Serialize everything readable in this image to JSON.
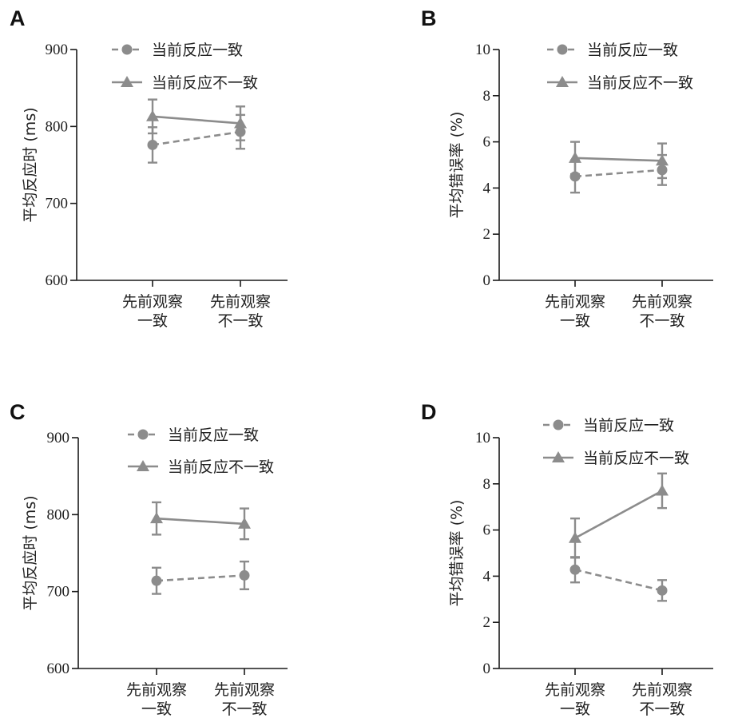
{
  "colors": {
    "series": "#8c8c8c",
    "axis": "#1a1a1a"
  },
  "chart_data": [
    {
      "panel": "A",
      "type": "line",
      "ylabel": "平均反应时 (ms)",
      "categories": [
        "先前观察\n一致",
        "先前观察\n不一致"
      ],
      "ylim": [
        600,
        900
      ],
      "yticks": [
        600,
        700,
        800,
        900
      ],
      "legend_position": "top",
      "series": [
        {
          "name": "当前反应一致",
          "marker": "circle",
          "dashed": true,
          "values": [
            776,
            793
          ],
          "errors": [
            23,
            22
          ]
        },
        {
          "name": "当前反应不一致",
          "marker": "triangle",
          "dashed": false,
          "values": [
            813,
            804
          ],
          "errors": [
            22,
            22
          ]
        }
      ]
    },
    {
      "panel": "B",
      "type": "line",
      "ylabel": "平均错误率 (%)",
      "categories": [
        "先前观察\n一致",
        "先前观察\n不一致"
      ],
      "ylim": [
        0,
        10
      ],
      "yticks": [
        0,
        2,
        4,
        6,
        8,
        10
      ],
      "legend_position": "top",
      "series": [
        {
          "name": "当前反应一致",
          "marker": "circle",
          "dashed": true,
          "values": [
            4.5,
            4.78
          ],
          "errors": [
            0.7,
            0.65
          ]
        },
        {
          "name": "当前反应不一致",
          "marker": "triangle",
          "dashed": false,
          "values": [
            5.3,
            5.18
          ],
          "errors": [
            0.7,
            0.75
          ]
        }
      ]
    },
    {
      "panel": "C",
      "type": "line",
      "ylabel": "平均反应时 (ms)",
      "categories": [
        "先前观察\n一致",
        "先前观察\n不一致"
      ],
      "ylim": [
        600,
        900
      ],
      "yticks": [
        600,
        700,
        800,
        900
      ],
      "legend_position": "top",
      "series": [
        {
          "name": "当前反应一致",
          "marker": "circle",
          "dashed": true,
          "values": [
            714,
            721
          ],
          "errors": [
            17,
            18
          ]
        },
        {
          "name": "当前反应不一致",
          "marker": "triangle",
          "dashed": false,
          "values": [
            795,
            788
          ],
          "errors": [
            21,
            20
          ]
        }
      ]
    },
    {
      "panel": "D",
      "type": "line",
      "ylabel": "平均错误率 (%)",
      "categories": [
        "先前观察\n一致",
        "先前观察\n不一致"
      ],
      "ylim": [
        0,
        10
      ],
      "yticks": [
        0,
        2,
        4,
        6,
        8,
        10
      ],
      "legend_position": "top",
      "series": [
        {
          "name": "当前反应一致",
          "marker": "circle",
          "dashed": true,
          "values": [
            4.28,
            3.38
          ],
          "errors": [
            0.55,
            0.45
          ]
        },
        {
          "name": "当前反应不一致",
          "marker": "triangle",
          "dashed": false,
          "values": [
            5.65,
            7.7
          ],
          "errors": [
            0.85,
            0.75
          ]
        }
      ]
    }
  ]
}
